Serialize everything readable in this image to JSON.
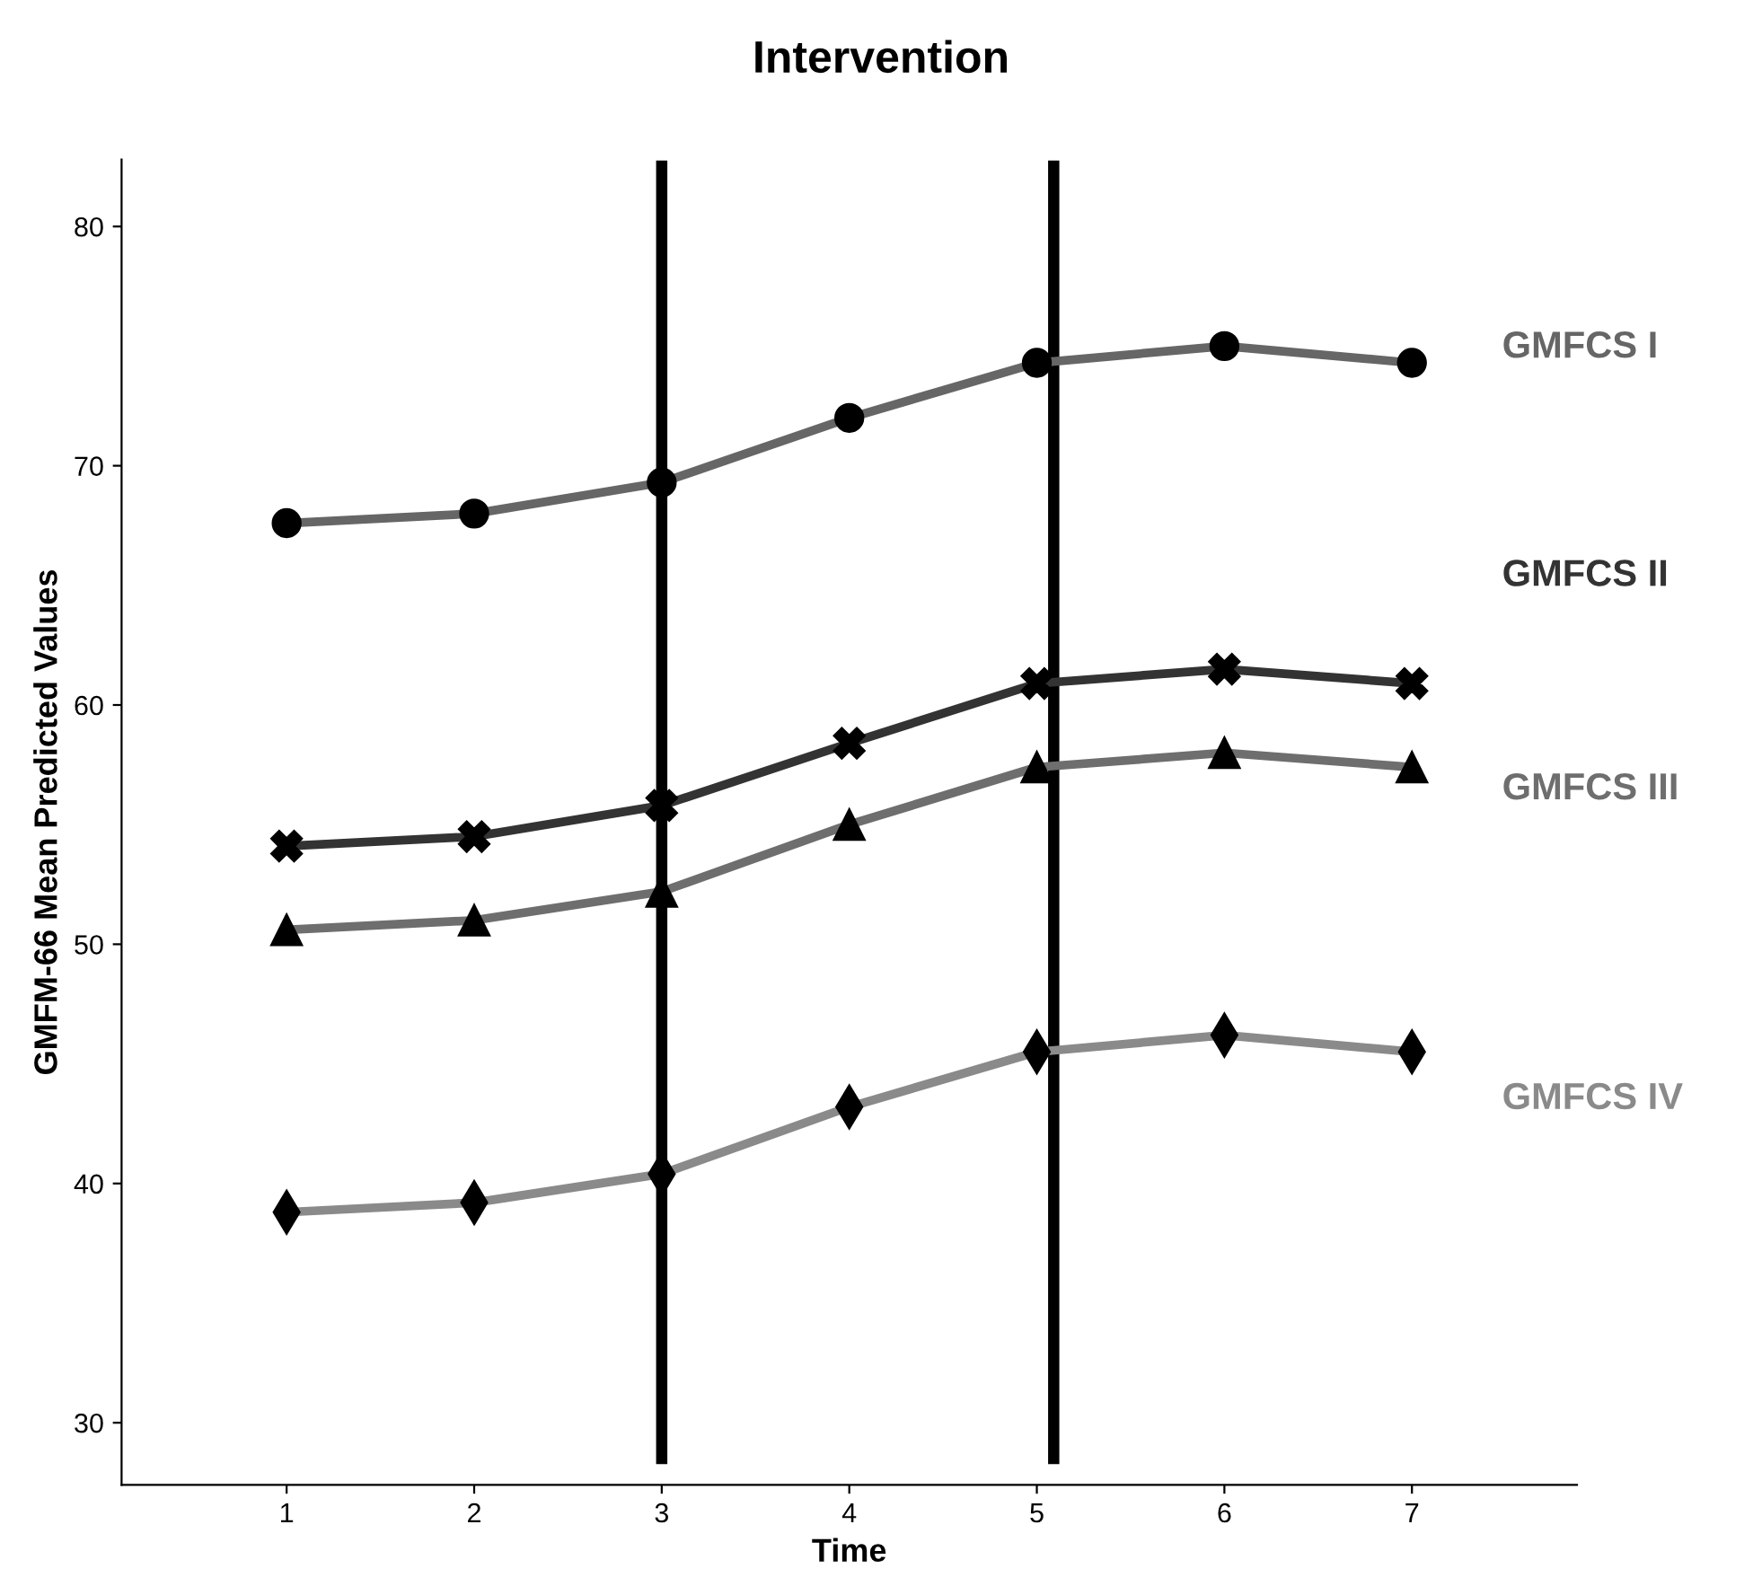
{
  "chart_data": {
    "type": "line",
    "title": "Intervention",
    "xlabel": "Time",
    "ylabel": "GMFM-66 Mean Predicted Values",
    "x": [
      1,
      2,
      3,
      4,
      5,
      6,
      7
    ],
    "series": [
      {
        "name": "GMFCS I",
        "color": "#666666",
        "marker": "circle",
        "values": [
          67.6,
          68.0,
          69.3,
          72.0,
          74.3,
          75.0,
          74.3
        ]
      },
      {
        "name": "GMFCS II",
        "color": "#333333",
        "marker": "cross",
        "values": [
          54.1,
          54.5,
          55.8,
          58.4,
          60.9,
          61.5,
          60.9
        ]
      },
      {
        "name": "GMFCS III",
        "color": "#6e6e6e",
        "marker": "triangle",
        "values": [
          50.6,
          51.0,
          52.2,
          55.0,
          57.4,
          58.0,
          57.4
        ]
      },
      {
        "name": "GMFCS IV",
        "color": "#8a8a8a",
        "marker": "diamond",
        "values": [
          38.8,
          39.2,
          40.4,
          43.2,
          45.5,
          46.2,
          45.5
        ]
      }
    ],
    "ref_lines": [
      {
        "axis": "x",
        "value": 3,
        "label": null,
        "color": "#000000"
      },
      {
        "axis": "x",
        "value": 5.09,
        "label": null,
        "color": "#000000"
      }
    ],
    "xlim": [
      0.12,
      7.88
    ],
    "xticks": [
      1,
      2,
      3,
      4,
      5,
      6,
      7
    ],
    "ylim": [
      27.4,
      82.8
    ],
    "yticks": [
      30,
      40,
      50,
      60,
      70,
      80
    ],
    "grid": false,
    "legend": false,
    "line_style": "solid"
  }
}
